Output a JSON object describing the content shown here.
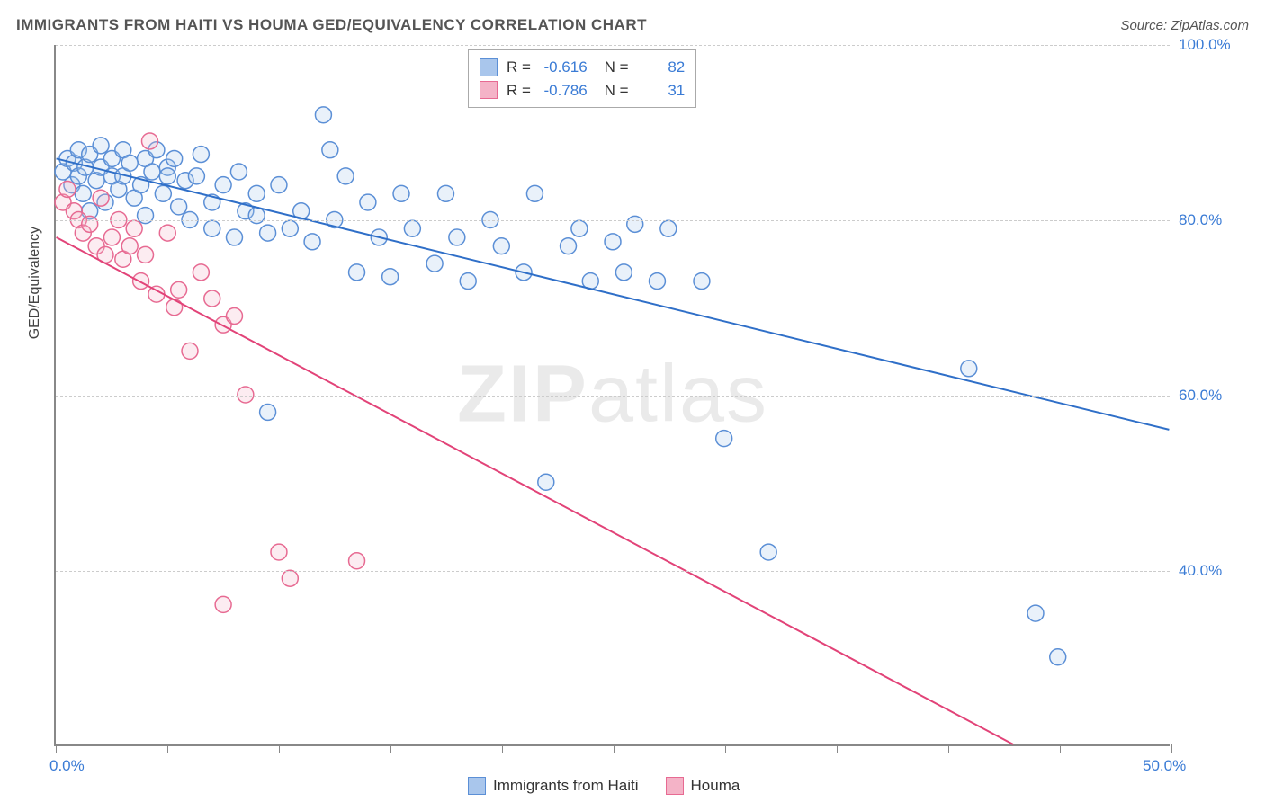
{
  "title": "IMMIGRANTS FROM HAITI VS HOUMA GED/EQUIVALENCY CORRELATION CHART",
  "source": "Source: ZipAtlas.com",
  "watermark": {
    "bold": "ZIP",
    "light": "atlas"
  },
  "yaxis_title": "GED/Equivalency",
  "chart": {
    "type": "scatter",
    "background_color": "#ffffff",
    "grid_color": "#cccccc",
    "axis_color": "#888888",
    "xlim": [
      0,
      50
    ],
    "ylim": [
      20,
      100
    ],
    "x_ticks": [
      0,
      5,
      10,
      15,
      20,
      25,
      30,
      35,
      40,
      45,
      50
    ],
    "x_tick_labels": {
      "0": "0.0%",
      "50": "50.0%"
    },
    "x_label_color": "#3a7bd5",
    "y_ticks": [
      40,
      60,
      80,
      100
    ],
    "y_tick_labels": {
      "40": "40.0%",
      "60": "60.0%",
      "80": "80.0%",
      "100": "100.0%"
    },
    "y_label_color": "#3a7bd5",
    "marker_radius": 9,
    "marker_stroke_width": 1.5,
    "marker_fill_opacity": 0.25,
    "line_width": 2
  },
  "series": [
    {
      "name": "Immigrants from Haiti",
      "color_stroke": "#5b8fd6",
      "color_fill": "#a9c6ec",
      "line_color": "#2f6fc8",
      "R": "-0.616",
      "N": "82",
      "regression": {
        "x1": 0,
        "y1": 87,
        "x2": 50,
        "y2": 56
      },
      "points": [
        [
          0.3,
          85.5
        ],
        [
          0.5,
          87
        ],
        [
          0.7,
          84
        ],
        [
          0.8,
          86.5
        ],
        [
          1,
          85
        ],
        [
          1,
          88
        ],
        [
          1.2,
          83
        ],
        [
          1.3,
          86
        ],
        [
          1.5,
          87.5
        ],
        [
          1.5,
          81
        ],
        [
          1.8,
          84.5
        ],
        [
          2,
          86
        ],
        [
          2,
          88.5
        ],
        [
          2.2,
          82
        ],
        [
          2.5,
          85
        ],
        [
          2.5,
          87
        ],
        [
          2.8,
          83.5
        ],
        [
          3,
          88
        ],
        [
          3,
          85
        ],
        [
          3.3,
          86.5
        ],
        [
          3.5,
          82.5
        ],
        [
          3.8,
          84
        ],
        [
          4,
          87
        ],
        [
          4,
          80.5
        ],
        [
          4.3,
          85.5
        ],
        [
          4.5,
          88
        ],
        [
          4.8,
          83
        ],
        [
          5,
          86
        ],
        [
          5,
          85
        ],
        [
          5.3,
          87
        ],
        [
          5.5,
          81.5
        ],
        [
          5.8,
          84.5
        ],
        [
          6,
          80
        ],
        [
          6.3,
          85
        ],
        [
          6.5,
          87.5
        ],
        [
          7,
          82
        ],
        [
          7,
          79
        ],
        [
          7.5,
          84
        ],
        [
          8,
          78
        ],
        [
          8.2,
          85.5
        ],
        [
          8.5,
          81
        ],
        [
          9,
          80.5
        ],
        [
          9,
          83
        ],
        [
          9.5,
          78.5
        ],
        [
          10,
          84
        ],
        [
          10.5,
          79
        ],
        [
          11,
          81
        ],
        [
          11.5,
          77.5
        ],
        [
          9.5,
          58
        ],
        [
          12,
          92
        ],
        [
          12.3,
          88
        ],
        [
          12.5,
          80
        ],
        [
          13,
          85
        ],
        [
          13.5,
          74
        ],
        [
          14,
          82
        ],
        [
          14.5,
          78
        ],
        [
          15,
          73.5
        ],
        [
          15.5,
          83
        ],
        [
          16,
          79
        ],
        [
          17,
          75
        ],
        [
          17.5,
          83
        ],
        [
          18,
          78
        ],
        [
          18.5,
          73
        ],
        [
          19.5,
          80
        ],
        [
          20,
          77
        ],
        [
          21,
          74
        ],
        [
          21.5,
          83
        ],
        [
          22,
          50
        ],
        [
          23,
          77
        ],
        [
          23.5,
          79
        ],
        [
          24,
          73
        ],
        [
          25,
          77.5
        ],
        [
          25.5,
          74
        ],
        [
          26,
          79.5
        ],
        [
          27,
          73
        ],
        [
          27.5,
          79
        ],
        [
          29,
          73
        ],
        [
          30,
          55
        ],
        [
          32,
          42
        ],
        [
          41,
          63
        ],
        [
          44,
          35
        ],
        [
          45,
          30
        ]
      ]
    },
    {
      "name": "Houma",
      "color_stroke": "#e76a92",
      "color_fill": "#f4b3c7",
      "line_color": "#e24378",
      "R": "-0.786",
      "N": "31",
      "regression": {
        "x1": 0,
        "y1": 78,
        "x2": 43,
        "y2": 20
      },
      "points": [
        [
          0.3,
          82
        ],
        [
          0.5,
          83.5
        ],
        [
          0.8,
          81
        ],
        [
          1,
          80
        ],
        [
          1.2,
          78.5
        ],
        [
          1.5,
          79.5
        ],
        [
          1.8,
          77
        ],
        [
          2,
          82.5
        ],
        [
          2.2,
          76
        ],
        [
          2.5,
          78
        ],
        [
          2.8,
          80
        ],
        [
          3,
          75.5
        ],
        [
          3.3,
          77
        ],
        [
          3.5,
          79
        ],
        [
          3.8,
          73
        ],
        [
          4,
          76
        ],
        [
          4.2,
          89
        ],
        [
          4.5,
          71.5
        ],
        [
          5,
          78.5
        ],
        [
          5.3,
          70
        ],
        [
          5.5,
          72
        ],
        [
          6,
          65
        ],
        [
          6.5,
          74
        ],
        [
          7,
          71
        ],
        [
          7.5,
          68
        ],
        [
          7.5,
          36
        ],
        [
          8,
          69
        ],
        [
          8.5,
          60
        ],
        [
          10,
          42
        ],
        [
          10.5,
          39
        ],
        [
          13.5,
          41
        ]
      ]
    }
  ],
  "legend_labels": {
    "R": "R  =",
    "N": "N  ="
  },
  "bottom_legend": [
    {
      "label": "Immigrants from Haiti",
      "stroke": "#5b8fd6",
      "fill": "#a9c6ec"
    },
    {
      "label": "Houma",
      "stroke": "#e76a92",
      "fill": "#f4b3c7"
    }
  ]
}
